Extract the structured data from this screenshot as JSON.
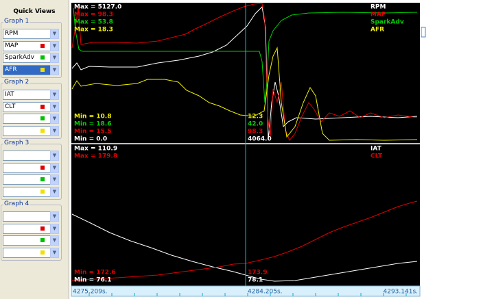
{
  "sidebar": {
    "title": "Quick Views",
    "groups": [
      {
        "title": "Graph 1",
        "rows": [
          {
            "label": "RPM"
          },
          {
            "label": "MAP",
            "marker": "#e00000"
          },
          {
            "label": "SparkAdv",
            "marker": "#00c000"
          },
          {
            "label": "AFR",
            "marker": "#f0e000",
            "selected": true
          }
        ]
      },
      {
        "title": "Graph 2",
        "rows": [
          {
            "label": "IAT"
          },
          {
            "label": "CLT",
            "marker": "#e00000"
          },
          {
            "marker": "#00c000"
          },
          {
            "marker": "#f0e000"
          }
        ]
      },
      {
        "title": "Graph 3",
        "rows": [
          null,
          {
            "marker": "#e00000"
          },
          {
            "marker": "#00c000"
          },
          {
            "marker": "#f0e000"
          }
        ]
      },
      {
        "title": "Graph 4",
        "rows": [
          null,
          {
            "marker": "#e00000"
          },
          {
            "marker": "#00c000"
          },
          {
            "marker": "#f0e000"
          }
        ]
      }
    ]
  },
  "graphs": [
    {
      "series": [
        {
          "name": "RPM",
          "color": "#ffffff",
          "max": "Max = 5127.0",
          "min": "Min = 0.0",
          "cursor": "4064.0"
        },
        {
          "name": "MAP",
          "color": "#e00000",
          "max": "Max = 98.3",
          "min": "Min = 15.5",
          "cursor": "98.3"
        },
        {
          "name": "SparkAdv",
          "color": "#00d000",
          "max": "Max = 53.8",
          "min": "Min = 18.6",
          "cursor": "42.0"
        },
        {
          "name": "AFR",
          "color": "#f0f000",
          "max": "Max = 18.3",
          "min": "Min = 10.8",
          "cursor": "12.3"
        }
      ]
    },
    {
      "series": [
        {
          "name": "IAT",
          "color": "#ffffff",
          "max": "Max = 110.9",
          "min": "Min = 76.1",
          "cursor": "78.1"
        },
        {
          "name": "CLT",
          "color": "#e00000",
          "max": "Max = 179.8",
          "min": "Min = 172.6",
          "cursor": "173.9"
        }
      ]
    }
  ],
  "time_axis": {
    "labels": [
      "4275.209s.",
      "4284.205s.",
      "4293.141s."
    ]
  }
}
